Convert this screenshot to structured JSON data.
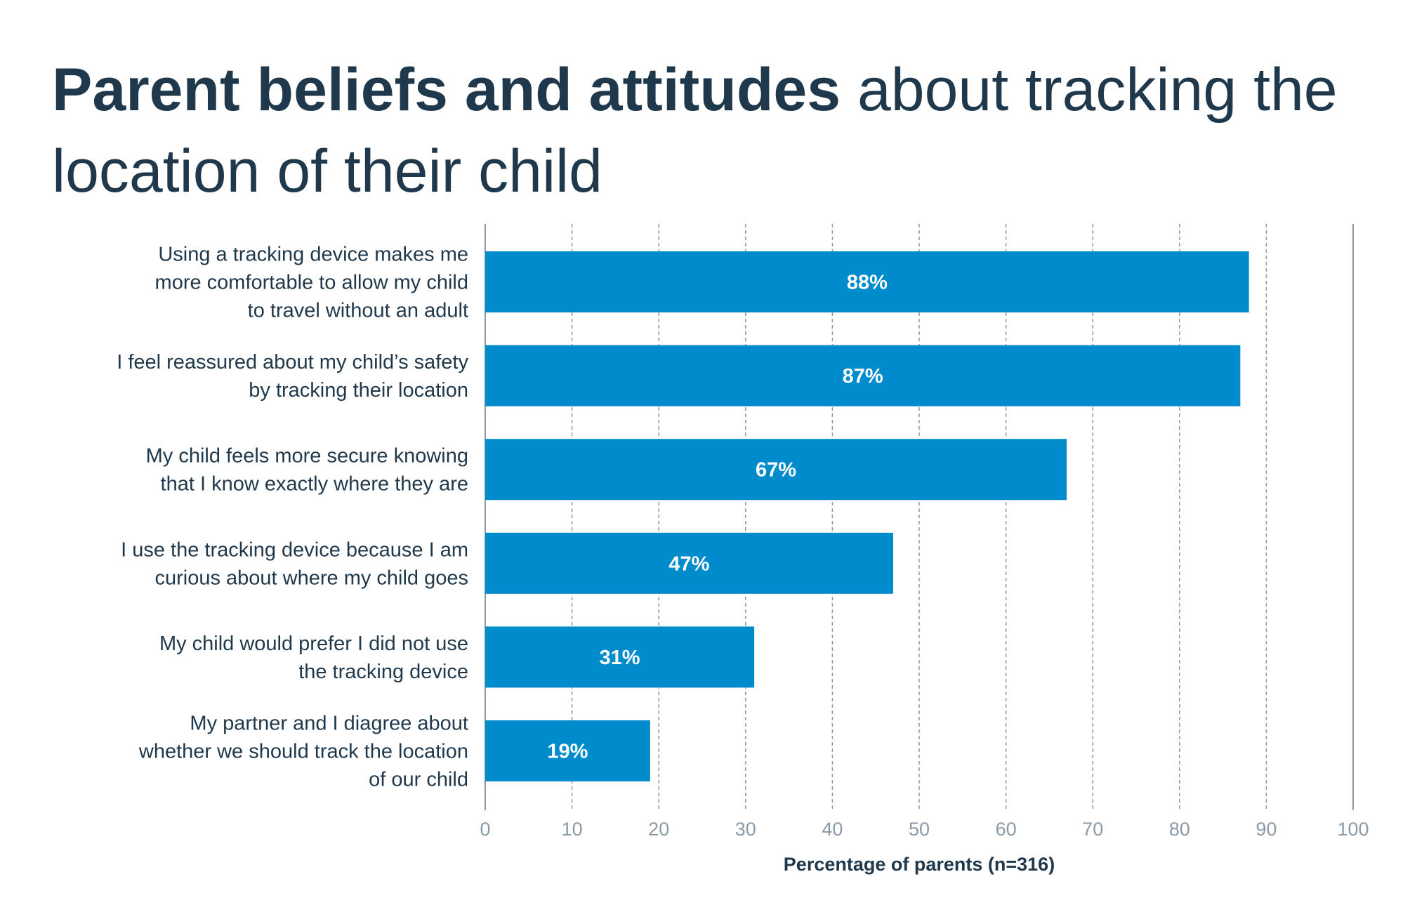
{
  "chart_data": {
    "type": "bar",
    "orientation": "horizontal",
    "title_bold": "Parent beliefs and attitudes",
    "title_rest": " about tracking the location of their child",
    "categories": [
      [
        "Using a tracking device makes me",
        "more comfortable to allow my child",
        "to travel without an adult"
      ],
      [
        "I feel reassured about my child’s safety",
        "by tracking their location"
      ],
      [
        "My child feels more secure knowing",
        "that I know exactly where they are"
      ],
      [
        "I use the tracking device because I am",
        "curious about where my child goes"
      ],
      [
        "My child would prefer I did not use",
        "the tracking device"
      ],
      [
        "My partner and I diagree about",
        "whether we should track the location",
        "of our child"
      ]
    ],
    "values": [
      88,
      87,
      67,
      47,
      31,
      19
    ],
    "data_labels": [
      "88%",
      "87%",
      "67%",
      "47%",
      "31%",
      "19%"
    ],
    "xlabel": "Percentage of parents (n=316)",
    "xlim": [
      0,
      100
    ],
    "xticks": [
      0,
      10,
      20,
      30,
      40,
      50,
      60,
      70,
      80,
      90,
      100
    ],
    "grid": "vertical dashed",
    "colors": {
      "bar": "#008bcc",
      "text": "#1f384b",
      "grid": "#8a9aa8"
    }
  }
}
